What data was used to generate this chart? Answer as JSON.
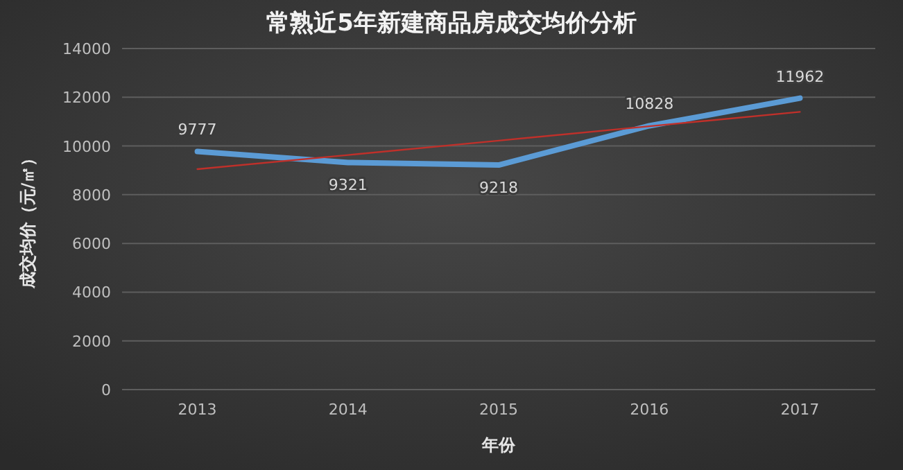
{
  "chart_data": {
    "type": "line",
    "title": "常熟近5年新建商品房成交均价分析",
    "xlabel": "年份",
    "ylabel": "成交均价（元/㎡）",
    "categories": [
      "2013",
      "2014",
      "2015",
      "2016",
      "2017"
    ],
    "series": [
      {
        "color": "#5b9bd5",
        "values": [
          9777,
          9321,
          9218,
          10828,
          11962
        ],
        "data_labels": true
      },
      {
        "type": "line",
        "color": "#c0302a",
        "values": [
          9050,
          9630,
          10220,
          10810,
          11400
        ]
      }
    ],
    "ylim": [
      0,
      14000
    ],
    "yticks": [
      0,
      2000,
      4000,
      6000,
      8000,
      10000,
      12000,
      14000
    ],
    "grid": "y",
    "marker": "none"
  }
}
